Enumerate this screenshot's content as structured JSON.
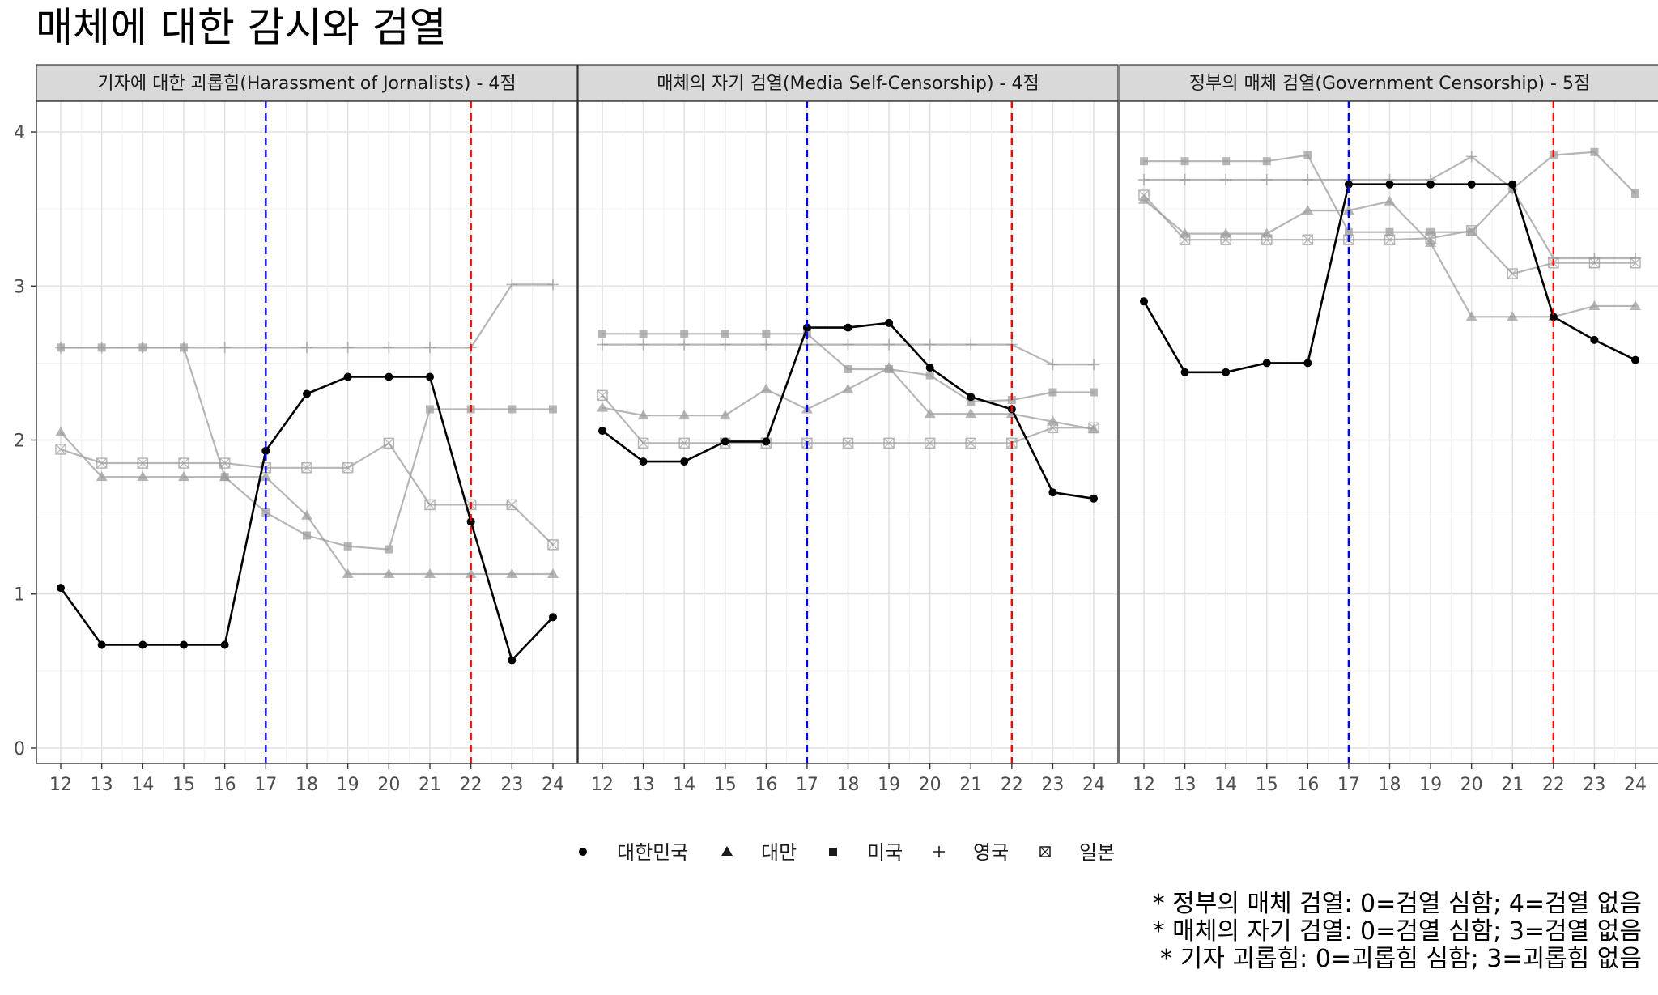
{
  "title": "매체에 대한 감시와 검열",
  "chart_data": {
    "type": "line",
    "x_ticks": [
      "12",
      "13",
      "14",
      "15",
      "16",
      "17",
      "18",
      "19",
      "20",
      "21",
      "22",
      "23",
      "24"
    ],
    "y_ticks": [
      "0",
      "1",
      "2",
      "3",
      "4"
    ],
    "ylim": [
      -0.1,
      4.2
    ],
    "grid": true,
    "legend_position": "bottom",
    "colors": {
      "highlight": "#000000",
      "others": "#9e9e9e",
      "vline_17": "#0000ff",
      "vline_22": "#ff0000",
      "strip_fill": "#d9d9d9"
    },
    "vlines": [
      17,
      22
    ],
    "legend": [
      {
        "label": "대한민국",
        "shape": "circle"
      },
      {
        "label": "대만",
        "shape": "triangle"
      },
      {
        "label": "미국",
        "shape": "square"
      },
      {
        "label": "영국",
        "shape": "plus"
      },
      {
        "label": "일본",
        "shape": "boxx"
      }
    ],
    "panels": [
      {
        "strip": "기자에 대한 괴롭힘(Harassment of Jornalists) - 4점",
        "series": [
          {
            "name": "대한민국",
            "values": [
              1.04,
              0.67,
              0.67,
              0.67,
              0.67,
              1.93,
              2.3,
              2.41,
              2.41,
              2.41,
              1.47,
              0.57,
              0.85
            ]
          },
          {
            "name": "대만",
            "values": [
              2.05,
              1.76,
              1.76,
              1.76,
              1.76,
              1.76,
              1.51,
              1.13,
              1.13,
              1.13,
              1.13,
              1.13,
              1.13
            ]
          },
          {
            "name": "미국",
            "values": [
              2.6,
              2.6,
              2.6,
              2.6,
              1.76,
              1.53,
              1.38,
              1.31,
              1.29,
              2.2,
              2.2,
              2.2,
              2.2
            ]
          },
          {
            "name": "영국",
            "values": [
              2.6,
              2.6,
              2.6,
              2.6,
              2.6,
              2.6,
              2.6,
              2.6,
              2.6,
              2.6,
              2.6,
              3.01,
              3.01
            ]
          },
          {
            "name": "일본",
            "values": [
              1.94,
              1.85,
              1.85,
              1.85,
              1.85,
              1.82,
              1.82,
              1.82,
              1.98,
              1.58,
              1.58,
              1.58,
              1.32
            ]
          }
        ]
      },
      {
        "strip": "매체의 자기 검열(Media Self-Censorship) - 4점",
        "series": [
          {
            "name": "대한민국",
            "values": [
              2.06,
              1.86,
              1.86,
              1.99,
              1.99,
              2.73,
              2.73,
              2.76,
              2.47,
              2.28,
              2.2,
              1.66,
              1.62
            ]
          },
          {
            "name": "대만",
            "values": [
              2.21,
              2.16,
              2.16,
              2.16,
              2.33,
              2.2,
              2.33,
              2.47,
              2.17,
              2.17,
              2.17,
              2.12,
              2.07
            ]
          },
          {
            "name": "미국",
            "values": [
              2.69,
              2.69,
              2.69,
              2.69,
              2.69,
              2.69,
              2.46,
              2.46,
              2.42,
              2.25,
              2.26,
              2.31,
              2.31
            ]
          },
          {
            "name": "영국",
            "values": [
              2.62,
              2.62,
              2.62,
              2.62,
              2.62,
              2.62,
              2.62,
              2.62,
              2.62,
              2.62,
              2.62,
              2.49,
              2.49
            ]
          },
          {
            "name": "일본",
            "values": [
              2.29,
              1.98,
              1.98,
              1.98,
              1.98,
              1.98,
              1.98,
              1.98,
              1.98,
              1.98,
              1.98,
              2.08,
              2.08
            ]
          }
        ]
      },
      {
        "strip": "정부의 매체 검열(Government Censorship) - 5점",
        "series": [
          {
            "name": "대한민국",
            "values": [
              2.9,
              2.44,
              2.44,
              2.5,
              2.5,
              3.66,
              3.66,
              3.66,
              3.66,
              3.66,
              2.8,
              2.65,
              2.52
            ]
          },
          {
            "name": "대만",
            "values": [
              3.56,
              3.34,
              3.34,
              3.34,
              3.49,
              3.49,
              3.55,
              3.28,
              2.8,
              2.8,
              2.8,
              2.87,
              2.87
            ]
          },
          {
            "name": "미국",
            "values": [
              3.81,
              3.81,
              3.81,
              3.81,
              3.85,
              3.35,
              3.35,
              3.35,
              3.35,
              3.63,
              3.85,
              3.87,
              3.6
            ]
          },
          {
            "name": "영국",
            "values": [
              3.69,
              3.69,
              3.69,
              3.69,
              3.69,
              3.69,
              3.69,
              3.69,
              3.84,
              3.63,
              3.18,
              3.18,
              3.18
            ]
          },
          {
            "name": "일본",
            "values": [
              3.59,
              3.3,
              3.3,
              3.3,
              3.3,
              3.3,
              3.3,
              3.31,
              3.36,
              3.08,
              3.15,
              3.15,
              3.15
            ]
          }
        ]
      }
    ]
  },
  "notes": [
    "* 정부의 매체 검열: 0=검열 심함; 4=검열 없음",
    "* 매체의 자기 검열: 0=검열 심함; 3=검열 없음",
    "* 기자 괴롭힘: 0=괴롭힘 심함; 3=괴롭힘 없음"
  ]
}
